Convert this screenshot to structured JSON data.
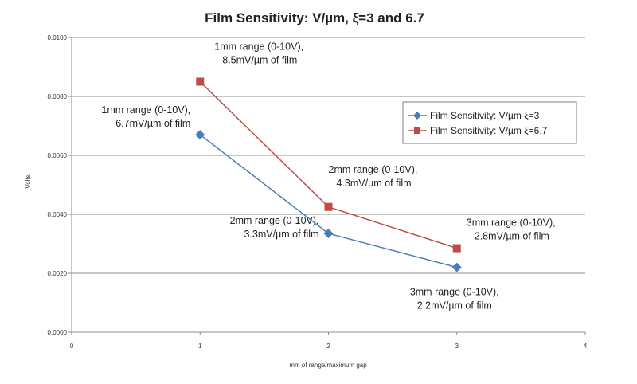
{
  "chart_data": {
    "type": "line",
    "title": "Film Sensitivity: V/µm, ξ=3 and 6.7",
    "xlabel": "mm of range/maximum gap",
    "ylabel": "Volts",
    "xlim": [
      0,
      4
    ],
    "ylim": [
      0,
      0.01
    ],
    "x_ticks": [
      "0",
      "1",
      "2",
      "3",
      "4"
    ],
    "y_ticks": [
      "0.0000",
      "0.0020",
      "0.0040",
      "0.0060",
      "0.0080",
      "0.0100"
    ],
    "grid": true,
    "legend_position": "right",
    "series": [
      {
        "name": "Film Sensitivity: V/µm ξ=3",
        "color": "#4a7ebb",
        "marker": "diamond",
        "points": [
          {
            "x": 1,
            "y": 0.0067,
            "label": [
              "1mm range (0-10V),",
              "6.7mV/µm of film"
            ]
          },
          {
            "x": 2,
            "y": 0.00335,
            "label": [
              "2mm range (0-10V),",
              "3.3mV/µm of film"
            ]
          },
          {
            "x": 3,
            "y": 0.0022,
            "label": [
              "3mm range (0-10V),",
              "2.2mV/µm of film"
            ]
          }
        ]
      },
      {
        "name": "Film Sensitivity: V/µm ξ=6.7",
        "color": "#be4b48",
        "marker": "square",
        "points": [
          {
            "x": 1,
            "y": 0.0085,
            "label": [
              "1mm range (0-10V),",
              "8.5mV/µm of film"
            ]
          },
          {
            "x": 2,
            "y": 0.00425,
            "label": [
              "2mm range (0-10V),",
              "4.3mV/µm of film"
            ]
          },
          {
            "x": 3,
            "y": 0.00285,
            "label": [
              "3mm range (0-10V),",
              "2.8mV/µm of film"
            ]
          }
        ]
      }
    ]
  }
}
